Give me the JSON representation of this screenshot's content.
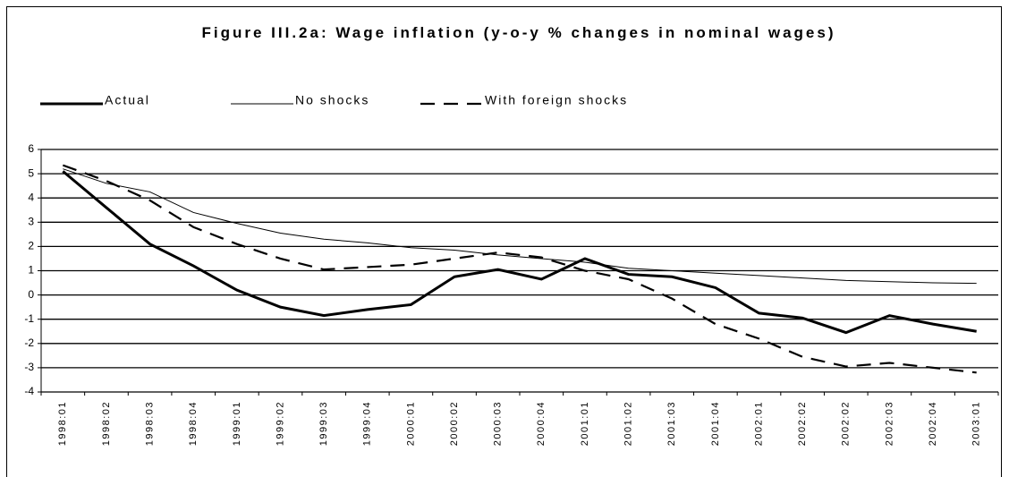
{
  "chart_data": {
    "type": "line",
    "title": "Figure III.2a: Wage inflation (y-o-y % changes in nominal wages)",
    "categories": [
      "1998:01",
      "1998:02",
      "1998:03",
      "1998:04",
      "1999:01",
      "1999:02",
      "1999:03",
      "1999:04",
      "2000:01",
      "2000:02",
      "2000:03",
      "2000:04",
      "2001:01",
      "2001:02",
      "2001:03",
      "2001:04",
      "2002:01",
      "2002:02",
      "2002:02",
      "2002:03",
      "2002:04",
      "2003:01"
    ],
    "series": [
      {
        "name": "Actual",
        "color": "#000000",
        "style": "thick",
        "values": [
          5.1,
          3.6,
          2.1,
          1.2,
          0.2,
          -0.5,
          -0.85,
          -0.6,
          -0.4,
          0.75,
          1.05,
          0.65,
          1.5,
          0.85,
          0.75,
          0.3,
          -0.75,
          -0.95,
          -1.55,
          -0.85,
          -1.2,
          -1.5
        ]
      },
      {
        "name": "No shocks",
        "color": "#000000",
        "style": "thin",
        "values": [
          5.2,
          4.6,
          4.25,
          3.4,
          2.95,
          2.55,
          2.3,
          2.15,
          1.95,
          1.85,
          1.65,
          1.5,
          1.35,
          1.1,
          1.0,
          0.9,
          0.8,
          0.7,
          0.6,
          0.55,
          0.5,
          0.48
        ]
      },
      {
        "name": "With foreign shocks",
        "color": "#000000",
        "style": "dashed",
        "values": [
          5.35,
          4.7,
          3.9,
          2.8,
          2.1,
          1.5,
          1.05,
          1.15,
          1.25,
          1.5,
          1.75,
          1.55,
          1.0,
          0.65,
          -0.15,
          -1.2,
          -1.8,
          -2.55,
          -2.95,
          -2.8,
          -3.0,
          -3.2
        ]
      }
    ],
    "ylim": [
      -4,
      6
    ],
    "yticks": [
      -4,
      -3,
      -2,
      -1,
      0,
      1,
      2,
      3,
      4,
      5,
      6
    ],
    "grid": true
  }
}
